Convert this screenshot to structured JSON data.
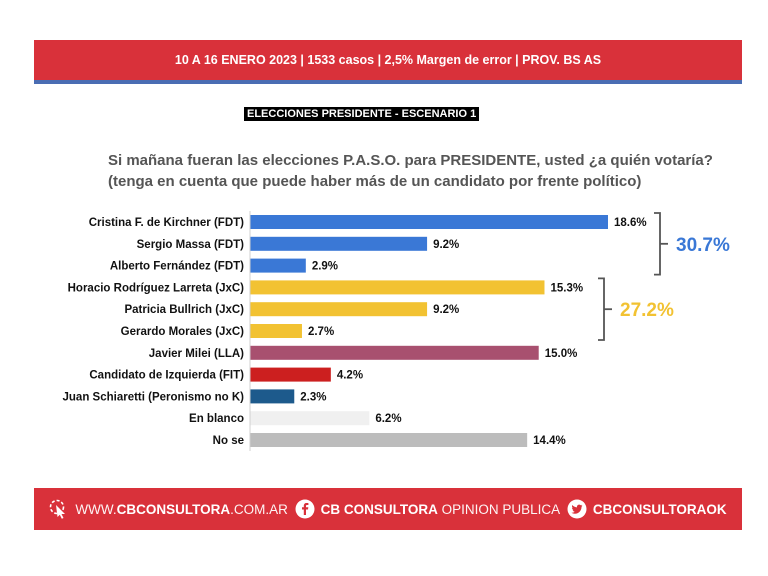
{
  "header": {
    "survey_info": "10 A 16 ENERO 2023 | 1533 casos  |  2,5% Margen de error  | PROV. BS AS"
  },
  "scenario_label": "ELECCIONES PRESIDENTE - ESCENARIO 1",
  "question": {
    "line1": "Si mañana fueran las elecciones P.A.S.O. para PRESIDENTE, usted ¿a quién votaría?",
    "line2": "(tenga en cuenta que puede haber más de un candidato por frente político)"
  },
  "chart_data": {
    "type": "bar",
    "orientation": "horizontal",
    "categories": [
      "Cristina F. de Kirchner (FDT)",
      "Sergio Massa (FDT)",
      "Alberto Fernández (FDT)",
      "Horacio Rodríguez Larreta (JxC)",
      "Patricia Bullrich (JxC)",
      "Gerardo Morales (JxC)",
      "Javier Milei (LLA)",
      "Candidato de Izquierda (FIT)",
      "Juan Schiaretti (Peronismo no K)",
      "En blanco",
      "No se"
    ],
    "values": [
      18.6,
      9.2,
      2.9,
      15.3,
      9.2,
      2.7,
      15.0,
      4.2,
      2.3,
      6.2,
      14.4
    ],
    "value_labels": [
      "18.6%",
      "9.2%",
      "2.9%",
      "15.3%",
      "9.2%",
      "2.7%",
      "15.0%",
      "4.2%",
      "2.3%",
      "6.2%",
      "14.4%"
    ],
    "colors": [
      "#3a78d6",
      "#3a78d6",
      "#3a78d6",
      "#f2c232",
      "#f2c232",
      "#f2c232",
      "#a8506f",
      "#cc1f1f",
      "#1d5a8c",
      "#f0f0f0",
      "#bcbcbc"
    ],
    "xlim": [
      0,
      19.5
    ],
    "grid": false,
    "groups": [
      {
        "start": 0,
        "end": 2,
        "total": "30.7%",
        "color": "#3a78d6"
      },
      {
        "start": 3,
        "end": 5,
        "total": "27.2%",
        "color": "#f2c232"
      }
    ]
  },
  "footer": {
    "website_prefix": "WWW.",
    "website_strong": "CBCONSULTORA",
    "website_suffix": ".COM.AR",
    "facebook_strong": "CB CONSULTORA",
    "facebook_light": "OPINION PUBLICA",
    "twitter_handle": "CBCONSULTORAOK",
    "icons": [
      "click-cursor-icon",
      "facebook-icon",
      "twitter-icon"
    ]
  }
}
